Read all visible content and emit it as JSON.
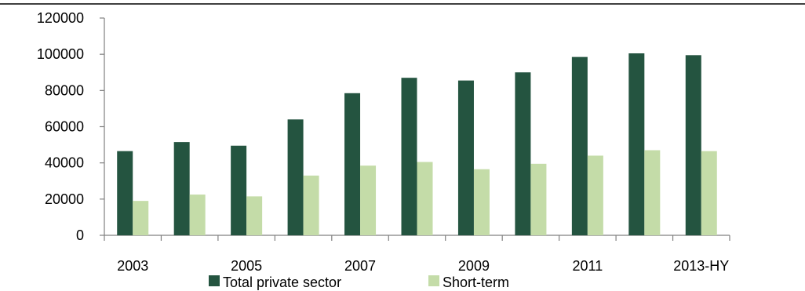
{
  "chart_data": {
    "type": "bar",
    "categories": [
      "2003",
      "2004",
      "2005",
      "2006",
      "2007",
      "2008",
      "2009",
      "2010",
      "2011",
      "2012",
      "2013-HY"
    ],
    "x_tick_labels_shown": [
      "2003",
      "",
      "2005",
      "",
      "2007",
      "",
      "2009",
      "",
      "2011",
      "",
      "2013-HY"
    ],
    "series": [
      {
        "name": "Total private sector",
        "color": "#245440",
        "values": [
          46500,
          51500,
          49500,
          64000,
          78500,
          87000,
          85500,
          90000,
          98500,
          100500,
          99500
        ]
      },
      {
        "name": "Short-term",
        "color": "#c4dca8",
        "values": [
          19000,
          22500,
          21500,
          33000,
          38500,
          40500,
          36500,
          39500,
          44000,
          47000,
          46500
        ]
      }
    ],
    "ylim": [
      0,
      120000
    ],
    "yticks": [
      "0",
      "20000",
      "40000",
      "60000",
      "80000",
      "100000",
      "120000"
    ],
    "grid": false,
    "legend_position": "bottom-center"
  }
}
